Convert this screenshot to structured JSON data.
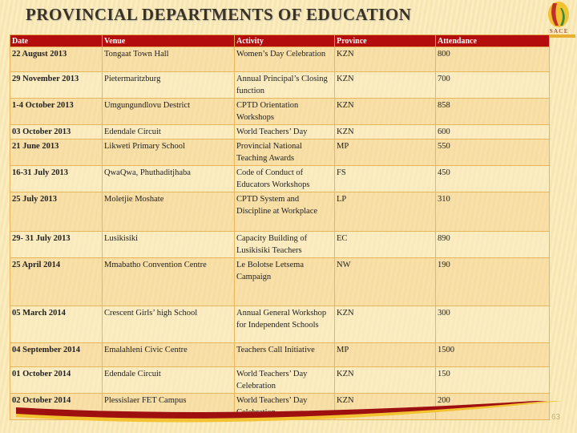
{
  "title": "PROVINCIAL DEPARTMENTS OF EDUCATION",
  "logo_text": "SACE",
  "columns": [
    "Date",
    "Venue",
    "Activity",
    "Province",
    "Attendance"
  ],
  "rows": [
    [
      "22 August 2013",
      "Tongaat Town Hall",
      "Women’s Day Celebration",
      "KZN",
      "800"
    ],
    [
      "29 November 2013",
      "Pietermaritzburg",
      "Annual Principal’s Closing function",
      "KZN",
      "700"
    ],
    [
      "1-4 October 2013",
      "Umgungundlovu Destrict",
      "CPTD Orientation Workshops",
      "KZN",
      "858"
    ],
    [
      "03 October 2013",
      "Edendale Circuit",
      "World Teachers’ Day",
      "KZN",
      "600"
    ],
    [
      "21 June 2013",
      "Likweti Primary School",
      "Provincial National Teaching Awards",
      "MP",
      "550"
    ],
    [
      "16-31 July 2013",
      "QwaQwa, Phuthaditjhaba",
      "Code of Conduct of Educators Workshops",
      "FS",
      "450"
    ],
    [
      "25 July 2013",
      "Moletjie Moshate",
      "CPTD System and Discipline at Workplace",
      "LP",
      "310"
    ],
    [
      "29- 31 July 2013",
      "Lusikisiki",
      "Capacity Building of Lusikisiki Teachers",
      "EC",
      "890"
    ],
    [
      "25 April 2014",
      "Mmabatho Convention Centre",
      "Le Bolotse Letsema Campaign",
      "NW",
      "190"
    ],
    [
      "05 March 2014",
      "Crescent Girls’ high School",
      "Annual General Workshop for Independent Schools",
      "KZN",
      "300"
    ],
    [
      "04 September 2014",
      "Emalahleni Civic Centre",
      "Teachers Call Initiative",
      "MP",
      "1500"
    ],
    [
      "01 October 2014",
      "Edendale Circuit",
      "World Teachers’ Day Celebration",
      "KZN",
      "150"
    ],
    [
      "02 October 2014",
      "Plessislaer FET Campus",
      "World Teachers’ Day Celebration",
      "KZN",
      "200"
    ]
  ],
  "page_number": "63",
  "colors": {
    "header": "#b30d0d",
    "border": "#e8b65a",
    "background": "#fbefc4"
  }
}
